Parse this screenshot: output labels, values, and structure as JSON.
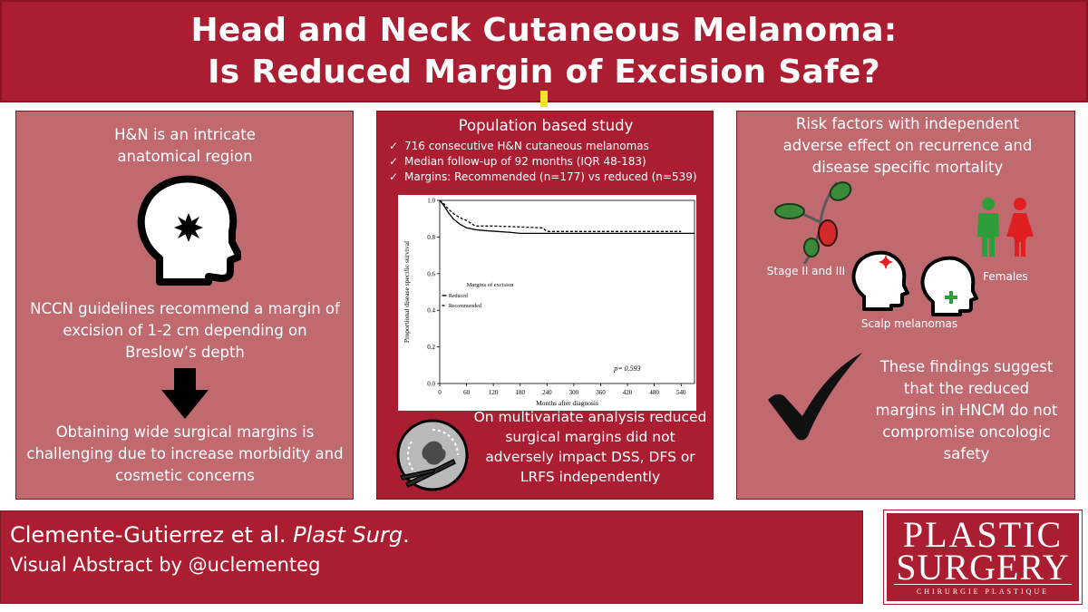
{
  "header": {
    "title_line1": "Head and Neck Cutaneous Melanoma:",
    "title_line2": "Is Reduced Margin of Excision Safe?"
  },
  "left_panel": {
    "intro": "H&N is an intricate anatomical region",
    "guideline": "NCCN guidelines recommend a margin of excision of 1-2 cm depending on Breslow’s depth",
    "challenge": "Obtaining wide surgical margins is challenging due to increase morbidity and cosmetic concerns"
  },
  "middle_panel": {
    "heading": "Population based study",
    "check_glyph": "✓",
    "bullets": [
      "716 consecutive H&N cutaneous melanomas",
      "Median follow-up of  92 months (IQR 48-183)",
      "Margins: Recommended (n=177) vs reduced (n=539)"
    ],
    "conclusion": "On multivariate analysis reduced surgical margins did not adversely impact DSS, DFS or LRFS independently"
  },
  "chart_data": {
    "type": "line",
    "title": "",
    "xlabel": "Months after diagnosis",
    "ylabel": "Proportional disease specific survival",
    "xlim": [
      0,
      570
    ],
    "ylim": [
      0,
      1.0
    ],
    "x_ticks": [
      0,
      60,
      120,
      180,
      240,
      300,
      360,
      420,
      480,
      540
    ],
    "y_ticks": [
      0.0,
      0.2,
      0.4,
      0.6,
      0.8,
      1.0
    ],
    "grid": false,
    "legend": {
      "title": "Margins of excision",
      "placement": "center-left"
    },
    "annotation": "p= 0.593",
    "series": [
      {
        "name": "Reduced",
        "style": "solid",
        "points": [
          [
            0,
            1.0
          ],
          [
            10,
            0.97
          ],
          [
            20,
            0.93
          ],
          [
            30,
            0.9
          ],
          [
            45,
            0.87
          ],
          [
            60,
            0.85
          ],
          [
            80,
            0.84
          ],
          [
            100,
            0.835
          ],
          [
            130,
            0.83
          ],
          [
            160,
            0.825
          ],
          [
            180,
            0.82
          ],
          [
            200,
            0.82
          ],
          [
            300,
            0.82
          ],
          [
            400,
            0.82
          ],
          [
            500,
            0.82
          ],
          [
            570,
            0.82
          ]
        ]
      },
      {
        "name": "Recommended",
        "style": "dashed",
        "points": [
          [
            0,
            1.0
          ],
          [
            10,
            0.98
          ],
          [
            20,
            0.95
          ],
          [
            35,
            0.92
          ],
          [
            50,
            0.9
          ],
          [
            60,
            0.89
          ],
          [
            80,
            0.86
          ],
          [
            120,
            0.86
          ],
          [
            180,
            0.855
          ],
          [
            230,
            0.85
          ],
          [
            240,
            0.83
          ],
          [
            300,
            0.83
          ],
          [
            400,
            0.83
          ],
          [
            500,
            0.83
          ],
          [
            540,
            0.83
          ]
        ]
      }
    ]
  },
  "right_panel": {
    "heading": "Risk factors with independent adverse effect on recurrence and disease specific mortality",
    "stage_label": "Stage II and III",
    "females_label": "Females",
    "scalp_label": "Scalp melanomas",
    "conclusion": "These findings suggest that the reduced margins in HNCM do not compromise oncologic safety"
  },
  "footer": {
    "authors": "Clemente-Gutierrez et al. ",
    "journal": "Plast Surg",
    "period": ".",
    "credit": "Visual Abstract by @uclementeg"
  },
  "logo": {
    "line1": "PLASTIC",
    "line2": "SURGERY",
    "line3": "CHIRURGIE PLASTIQUE"
  },
  "colors": {
    "accent": "#ab1e31",
    "panel_light": "#c06a70",
    "highlight": "#f2e32a"
  }
}
